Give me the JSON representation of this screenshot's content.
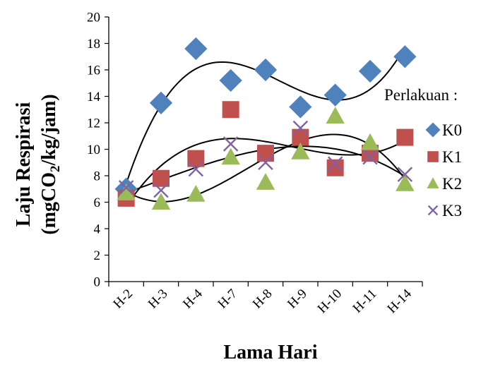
{
  "chart_data": {
    "type": "scatter",
    "xlabel": "Lama Hari",
    "ylabel_line1": "Laju Respirasi",
    "ylabel_line2_prefix": "(mgCO",
    "ylabel_line2_sub": "2",
    "ylabel_line2_suffix": "/kg/jam)",
    "categories": [
      "H-2",
      "H-3",
      "H-4",
      "H-7",
      "H-8",
      "H-9",
      "H-10",
      "H-11",
      "H-14"
    ],
    "ylim": [
      0,
      20
    ],
    "yticks": [
      "0",
      "2",
      "4",
      "6",
      "8",
      "10",
      "12",
      "14",
      "16",
      "18",
      "20"
    ],
    "legend_title": "Perlakuan :",
    "legend_position": "right",
    "series": [
      {
        "name": "K0",
        "marker": "diamond",
        "color": "#4F81BD",
        "values": [
          7.0,
          13.5,
          17.6,
          15.2,
          16.0,
          13.2,
          14.1,
          15.9,
          17.0
        ]
      },
      {
        "name": "K1",
        "marker": "square",
        "color": "#C0504D",
        "values": [
          6.3,
          7.8,
          9.3,
          13.0,
          9.7,
          10.9,
          8.6,
          9.7,
          10.9
        ]
      },
      {
        "name": "K2",
        "marker": "triangle",
        "color": "#9BBB59",
        "values": [
          6.7,
          6.0,
          6.6,
          9.4,
          7.5,
          9.8,
          12.5,
          10.5,
          7.4
        ]
      },
      {
        "name": "K3",
        "marker": "x",
        "color": "#8064A2",
        "values": [
          7.1,
          6.9,
          8.5,
          10.4,
          9.0,
          11.6,
          8.9,
          9.4,
          8.1
        ]
      }
    ],
    "trendlines": "polynomial",
    "grid": false
  }
}
